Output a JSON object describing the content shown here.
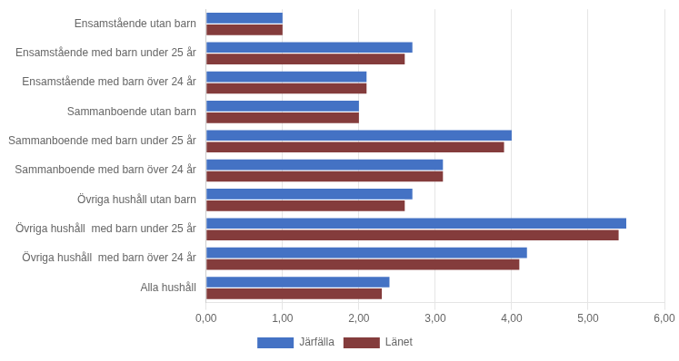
{
  "chart_data": {
    "type": "bar",
    "orientation": "horizontal",
    "categories": [
      "Ensamstående utan barn",
      "Ensamstående med barn under 25 år",
      "Ensamstående med barn över 24 år",
      "Sammanboende utan barn",
      "Sammanboende med barn under 25 år",
      "Sammanboende med barn över 24 år",
      "Övriga hushåll utan barn",
      "Övriga hushåll  med barn under 25 år",
      "Övriga hushåll  med barn över 24 år",
      "Alla hushåll"
    ],
    "series": [
      {
        "name": "Järfälla",
        "color": "#4472C4",
        "values": [
          1.0,
          2.7,
          2.1,
          2.0,
          4.0,
          3.1,
          2.7,
          5.5,
          4.2,
          2.4
        ]
      },
      {
        "name": "Länet",
        "color": "#843C3C",
        "values": [
          1.0,
          2.6,
          2.1,
          2.0,
          3.9,
          3.1,
          2.6,
          5.4,
          4.1,
          2.3
        ]
      }
    ],
    "xlim": [
      0,
      6.0
    ],
    "xticks": [
      {
        "value": 0.0,
        "label": "0,00"
      },
      {
        "value": 1.0,
        "label": "1,00"
      },
      {
        "value": 2.0,
        "label": "2,00"
      },
      {
        "value": 3.0,
        "label": "3,00"
      },
      {
        "value": 4.0,
        "label": "4,00"
      },
      {
        "value": 5.0,
        "label": "5,00"
      },
      {
        "value": 6.0,
        "label": "6,00"
      }
    ],
    "grid": "x",
    "legend": "bottom"
  }
}
